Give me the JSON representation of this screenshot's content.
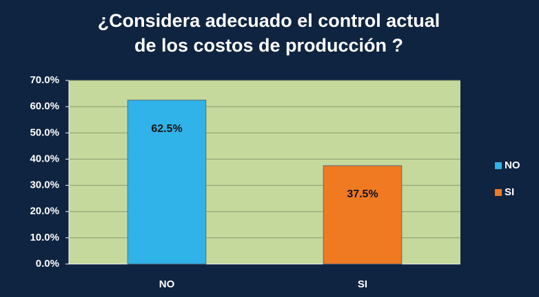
{
  "chart_data": {
    "type": "bar",
    "title": [
      "¿Considera adecuado el control actual",
      "de los costos de producción ?"
    ],
    "categories": [
      "NO",
      "SI"
    ],
    "values": [
      62.5,
      37.5
    ],
    "value_labels": [
      "62.5%",
      "37.5%"
    ],
    "colors": [
      "#2fb3e8",
      "#f07a22"
    ],
    "ylim": [
      0,
      70
    ],
    "yticks": [
      {
        "value": 0,
        "label": "0.0%"
      },
      {
        "value": 10,
        "label": "10.0%"
      },
      {
        "value": 20,
        "label": "20.0%"
      },
      {
        "value": 30,
        "label": "30.0%"
      },
      {
        "value": 40,
        "label": "40.0%"
      },
      {
        "value": 50,
        "label": "50.0%"
      },
      {
        "value": 60,
        "label": "60.0%"
      },
      {
        "value": 70,
        "label": "70.0%"
      }
    ],
    "grid": true,
    "legend": "right"
  }
}
